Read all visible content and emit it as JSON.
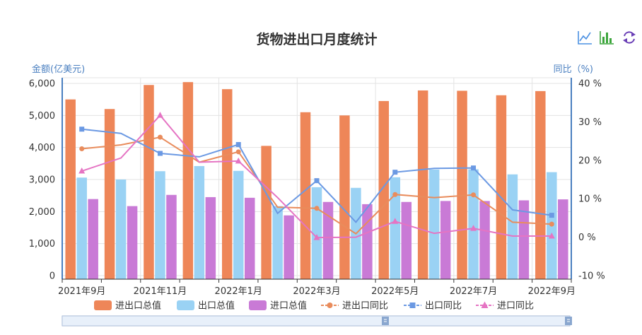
{
  "toolbar": {
    "icons": [
      "line-chart-icon",
      "bar-chart-icon",
      "refresh-icon"
    ],
    "line_color": "#4a90e2",
    "bar_color": "#3ca53c",
    "restore_color": "#6a3fb6"
  },
  "chart_data": {
    "type": "bar",
    "title": "货物进出口月度统计",
    "y_left": {
      "label": "金额(亿美元)",
      "min": 0,
      "max": 6000,
      "ticks": [
        "0",
        "1,000",
        "2,000",
        "3,000",
        "4,000",
        "5,000",
        "6,000"
      ]
    },
    "y_right": {
      "label": "同比（%)",
      "min": -10,
      "max": 40,
      "ticks": [
        "-10 %",
        "0 %",
        "10 %",
        "20 %",
        "30 %",
        "40 %"
      ]
    },
    "x_labels": [
      "2021年9月",
      "2021年11月",
      "2022年1月",
      "2022年3月",
      "2022年5月",
      "2022年7月",
      "2022年9月"
    ],
    "categories": [
      "2021-09",
      "2021-10",
      "2021-11",
      "2021-12",
      "2022-01",
      "2022-02",
      "2022-03",
      "2022-04",
      "2022-05",
      "2022-06",
      "2022-07",
      "2022-08",
      "2022-09"
    ],
    "bar_series": [
      {
        "name": "进出口总值",
        "color": "#ee8658",
        "values": [
          5500,
          5200,
          5950,
          6040,
          5820,
          4050,
          5100,
          5000,
          5450,
          5780,
          5770,
          5630,
          5760
        ]
      },
      {
        "name": "出口总值",
        "color": "#9ad2f4",
        "values": [
          3060,
          3000,
          3260,
          3420,
          3270,
          2170,
          2760,
          2740,
          3070,
          3310,
          3320,
          3160,
          3230
        ]
      },
      {
        "name": "进口总值",
        "color": "#c97ad6",
        "values": [
          2390,
          2170,
          2520,
          2450,
          2430,
          1880,
          2300,
          2230,
          2300,
          2330,
          2330,
          2350,
          2380
        ]
      }
    ],
    "line_series": [
      {
        "name": "进出口同比",
        "color": "#e98c5c",
        "marker": "circle",
        "values": [
          23.0,
          24.0,
          26.0,
          19.5,
          22.2,
          7.8,
          7.5,
          0.9,
          11.1,
          10.3,
          11.0,
          3.9,
          3.4
        ]
      },
      {
        "name": "出口同比",
        "color": "#6b99e3",
        "marker": "square",
        "values": [
          28.1,
          27.0,
          21.8,
          20.9,
          24.1,
          6.2,
          14.7,
          3.9,
          16.9,
          17.9,
          18.0,
          7.1,
          5.7
        ]
      },
      {
        "name": "进口同比",
        "color": "#e574c3",
        "marker": "triangle",
        "values": [
          17.2,
          20.6,
          31.7,
          19.5,
          19.8,
          10.3,
          -0.1,
          0.0,
          4.1,
          1.0,
          2.3,
          0.3,
          0.3
        ]
      }
    ],
    "grid": true,
    "legend_position": "bottom"
  }
}
